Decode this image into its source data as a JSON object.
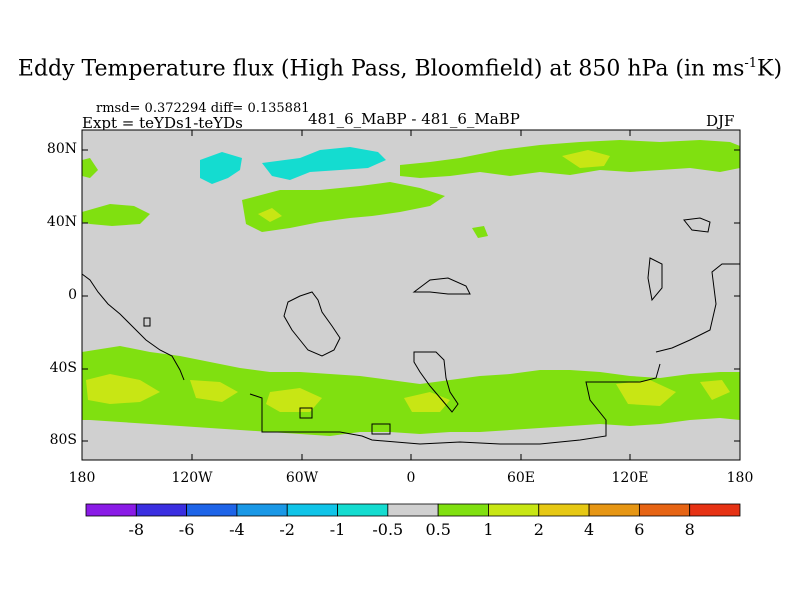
{
  "title": {
    "prefix": "Eddy Temperature flux (High Pass, Bloomfield) at 850 hPa (in ms",
    "sup": "-1",
    "suffix": "K)"
  },
  "stats": "rmsd= 0.372294 diff= 0.135881",
  "expt": "Expt = teYDs1-teYDs",
  "center_label": "481_6_MaBP - 481_6_MaBP",
  "season": "DJF",
  "y_axis": {
    "labels": [
      "80N",
      "40N",
      "0",
      "40S",
      "80S"
    ]
  },
  "x_axis": {
    "labels": [
      "180",
      "120W",
      "60W",
      "0",
      "60E",
      "120E",
      "180"
    ]
  },
  "colorbar": {
    "labels": [
      "-8",
      "-6",
      "-4",
      "-2",
      "-1",
      "-0.5",
      "0.5",
      "1",
      "2",
      "4",
      "6",
      "8"
    ],
    "colors": [
      "#8a1be6",
      "#3a2ee0",
      "#1e64e8",
      "#1a98e6",
      "#10c4e8",
      "#14dcd0",
      "#d0d0d0",
      "#80e010",
      "#c8e614",
      "#e6c814",
      "#e69614",
      "#e66414",
      "#e63214"
    ]
  },
  "colors": {
    "background": "#d0d0d0",
    "band_1": "#80e010",
    "band_2": "#c8e614",
    "band_neg": "#14dcd0"
  }
}
